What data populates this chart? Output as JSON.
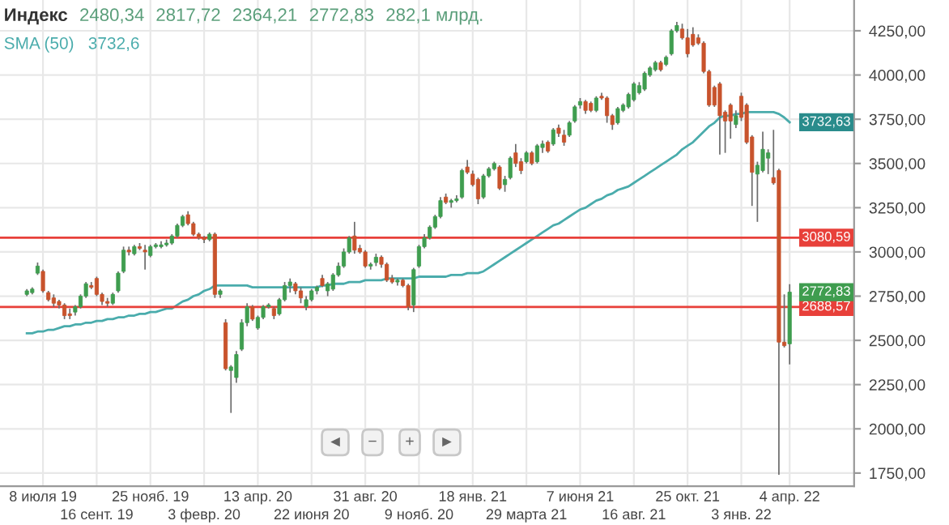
{
  "chart_data": {
    "type": "candlestick",
    "title": "Индекс",
    "categories": [
      null,
      null,
      null,
      "8 июля 19",
      null,
      null,
      null,
      null,
      null,
      null,
      null,
      null,
      null,
      "16 сент. 19",
      null,
      null,
      null,
      null,
      null,
      null,
      null,
      null,
      null,
      "25 нояб. 19",
      null,
      null,
      null,
      null,
      null,
      null,
      null,
      null,
      null,
      "3 февр. 20",
      null,
      null,
      null,
      null,
      null,
      null,
      null,
      null,
      null,
      "13 апр. 20",
      null,
      null,
      null,
      null,
      null,
      null,
      null,
      null,
      null,
      "22 июня 20",
      null,
      null,
      null,
      null,
      null,
      null,
      null,
      null,
      null,
      "31 авг. 20",
      null,
      null,
      null,
      null,
      null,
      null,
      null,
      null,
      null,
      "9 нояб. 20",
      null,
      null,
      null,
      null,
      null,
      null,
      null,
      null,
      null,
      "18 янв. 21",
      null,
      null,
      null,
      null,
      null,
      null,
      null,
      null,
      null,
      "29 марта 21",
      null,
      null,
      null,
      null,
      null,
      null,
      null,
      null,
      null,
      "7 июня 21",
      null,
      null,
      null,
      null,
      null,
      null,
      null,
      null,
      null,
      "16 авг. 21",
      null,
      null,
      null,
      null,
      null,
      null,
      null,
      null,
      null,
      "25 окт. 21",
      null,
      null,
      null,
      null,
      null,
      null,
      null,
      null,
      null,
      "3 янв. 22",
      null,
      null,
      null,
      null,
      null,
      null,
      null,
      null,
      "4 апр. 22"
    ],
    "ohlc": [
      [
        2760,
        2790,
        2750,
        2780
      ],
      [
        2770,
        2800,
        2760,
        2790
      ],
      [
        2880,
        2940,
        2870,
        2920
      ],
      [
        2890,
        2900,
        2770,
        2780
      ],
      [
        2770,
        2780,
        2720,
        2730
      ],
      [
        2740,
        2760,
        2690,
        2710
      ],
      [
        2720,
        2730,
        2680,
        2700
      ],
      [
        2700,
        2710,
        2620,
        2640
      ],
      [
        2650,
        2680,
        2620,
        2640
      ],
      [
        2660,
        2700,
        2640,
        2690
      ],
      [
        2690,
        2760,
        2680,
        2750
      ],
      [
        2750,
        2830,
        2740,
        2820
      ],
      [
        2810,
        2830,
        2790,
        2800
      ],
      [
        2850,
        2860,
        2750,
        2760
      ],
      [
        2760,
        2770,
        2700,
        2720
      ],
      [
        2720,
        2740,
        2690,
        2710
      ],
      [
        2710,
        2770,
        2700,
        2760
      ],
      [
        2780,
        2890,
        2770,
        2880
      ],
      [
        2890,
        3030,
        2880,
        3010
      ],
      [
        3010,
        3030,
        2980,
        3000
      ],
      [
        2990,
        3040,
        2980,
        3030
      ],
      [
        3030,
        3050,
        3010,
        3020
      ],
      [
        3010,
        3040,
        2900,
        3000
      ],
      [
        2980,
        3040,
        2970,
        3030
      ],
      [
        3030,
        3050,
        3020,
        3040
      ],
      [
        3030,
        3060,
        3020,
        3040
      ],
      [
        3040,
        3070,
        3030,
        3050
      ],
      [
        3050,
        3100,
        3040,
        3090
      ],
      [
        3090,
        3160,
        3080,
        3150
      ],
      [
        3150,
        3210,
        3140,
        3200
      ],
      [
        3210,
        3230,
        3150,
        3160
      ],
      [
        3160,
        3170,
        3090,
        3100
      ],
      [
        3100,
        3110,
        3070,
        3080
      ],
      [
        3080,
        3090,
        3050,
        3070
      ],
      [
        3070,
        3110,
        3060,
        3100
      ],
      [
        3100,
        3110,
        2740,
        2760
      ],
      [
        2760,
        2790,
        2740,
        2780
      ],
      [
        2600,
        2620,
        2330,
        2340
      ],
      [
        2330,
        2360,
        2090,
        2350
      ],
      [
        2290,
        2440,
        2260,
        2420
      ],
      [
        2450,
        2620,
        2440,
        2600
      ],
      [
        2600,
        2710,
        2580,
        2690
      ],
      [
        2690,
        2700,
        2610,
        2620
      ],
      [
        2570,
        2640,
        2560,
        2630
      ],
      [
        2630,
        2700,
        2620,
        2690
      ],
      [
        2690,
        2710,
        2680,
        2700
      ],
      [
        2680,
        2690,
        2620,
        2640
      ],
      [
        2650,
        2740,
        2640,
        2730
      ],
      [
        2730,
        2830,
        2720,
        2810
      ],
      [
        2810,
        2850,
        2770,
        2830
      ],
      [
        2820,
        2830,
        2760,
        2780
      ],
      [
        2780,
        2800,
        2710,
        2740
      ],
      [
        2690,
        2750,
        2670,
        2730
      ],
      [
        2730,
        2790,
        2720,
        2780
      ],
      [
        2780,
        2810,
        2760,
        2800
      ],
      [
        2850,
        2870,
        2800,
        2810
      ],
      [
        2780,
        2830,
        2750,
        2820
      ],
      [
        2790,
        2880,
        2780,
        2870
      ],
      [
        2870,
        2940,
        2860,
        2920
      ],
      [
        2920,
        3020,
        2910,
        3000
      ],
      [
        3000,
        3090,
        2990,
        3080
      ],
      [
        3090,
        3170,
        2990,
        3010
      ],
      [
        3020,
        3040,
        2990,
        3000
      ],
      [
        3000,
        3010,
        2910,
        2920
      ],
      [
        2920,
        2940,
        2900,
        2930
      ],
      [
        2940,
        2990,
        2920,
        2970
      ],
      [
        2970,
        2980,
        2910,
        2930
      ],
      [
        2930,
        2940,
        2830,
        2840
      ],
      [
        2850,
        2870,
        2820,
        2830
      ],
      [
        2830,
        2850,
        2810,
        2840
      ],
      [
        2840,
        2850,
        2800,
        2810
      ],
      [
        2810,
        2820,
        2670,
        2690
      ],
      [
        2700,
        2910,
        2660,
        2900
      ],
      [
        2920,
        3040,
        2910,
        3030
      ],
      [
        3030,
        3100,
        3020,
        3080
      ],
      [
        3080,
        3150,
        3070,
        3140
      ],
      [
        3140,
        3210,
        3130,
        3200
      ],
      [
        3200,
        3310,
        3190,
        3290
      ],
      [
        3310,
        3330,
        3270,
        3280
      ],
      [
        3280,
        3300,
        3250,
        3290
      ],
      [
        3290,
        3320,
        3280,
        3300
      ],
      [
        3310,
        3470,
        3300,
        3460
      ],
      [
        3480,
        3520,
        3440,
        3450
      ],
      [
        3440,
        3460,
        3370,
        3380
      ],
      [
        3410,
        3420,
        3270,
        3300
      ],
      [
        3310,
        3440,
        3300,
        3430
      ],
      [
        3430,
        3480,
        3420,
        3470
      ],
      [
        3470,
        3510,
        3460,
        3500
      ],
      [
        3480,
        3490,
        3350,
        3360
      ],
      [
        3380,
        3430,
        3340,
        3410
      ],
      [
        3420,
        3540,
        3410,
        3530
      ],
      [
        3560,
        3610,
        3480,
        3500
      ],
      [
        3510,
        3530,
        3440,
        3460
      ],
      [
        3510,
        3570,
        3500,
        3560
      ],
      [
        3560,
        3570,
        3490,
        3500
      ],
      [
        3510,
        3610,
        3500,
        3600
      ],
      [
        3590,
        3630,
        3560,
        3610
      ],
      [
        3620,
        3630,
        3560,
        3570
      ],
      [
        3610,
        3700,
        3600,
        3690
      ],
      [
        3700,
        3720,
        3650,
        3670
      ],
      [
        3660,
        3690,
        3600,
        3620
      ],
      [
        3660,
        3740,
        3650,
        3730
      ],
      [
        3740,
        3830,
        3730,
        3820
      ],
      [
        3830,
        3870,
        3810,
        3850
      ],
      [
        3850,
        3860,
        3780,
        3800
      ],
      [
        3840,
        3850,
        3790,
        3800
      ],
      [
        3800,
        3880,
        3790,
        3870
      ],
      [
        3880,
        3900,
        3860,
        3870
      ],
      [
        3870,
        3880,
        3730,
        3770
      ],
      [
        3770,
        3780,
        3690,
        3720
      ],
      [
        3730,
        3820,
        3720,
        3810
      ],
      [
        3800,
        3840,
        3790,
        3830
      ],
      [
        3820,
        3900,
        3810,
        3890
      ],
      [
        3860,
        3960,
        3850,
        3950
      ],
      [
        3900,
        3960,
        3890,
        3940
      ],
      [
        3920,
        4020,
        3910,
        4010
      ],
      [
        4000,
        4050,
        3990,
        4040
      ],
      [
        4030,
        4080,
        4020,
        4070
      ],
      [
        4070,
        4080,
        4020,
        4030
      ],
      [
        4060,
        4110,
        4050,
        4100
      ],
      [
        4120,
        4260,
        4110,
        4250
      ],
      [
        4250,
        4300,
        4240,
        4280
      ],
      [
        4260,
        4290,
        4200,
        4210
      ],
      [
        4210,
        4260,
        4100,
        4120
      ],
      [
        4230,
        4270,
        4160,
        4170
      ],
      [
        4210,
        4230,
        4170,
        4180
      ],
      [
        4180,
        4190,
        4010,
        4020
      ],
      [
        4020,
        4030,
        3820,
        3830
      ],
      [
        3930,
        3940,
        3820,
        3830
      ],
      [
        3950,
        3960,
        3550,
        3770
      ],
      [
        3790,
        3800,
        3560,
        3740
      ],
      [
        3830,
        3840,
        3640,
        3740
      ],
      [
        3720,
        3800,
        3700,
        3770
      ],
      [
        3880,
        3900,
        3740,
        3760
      ],
      [
        3830,
        3840,
        3610,
        3620
      ],
      [
        3650,
        3660,
        3260,
        3450
      ],
      [
        3440,
        3510,
        3170,
        3490
      ],
      [
        3460,
        3680,
        3450,
        3580
      ],
      [
        3530,
        3580,
        3440,
        3560
      ],
      [
        3420,
        3690,
        3380,
        3390
      ],
      [
        3460,
        3470,
        1740,
        2490
      ],
      [
        2490,
        2760,
        2460,
        2470
      ],
      [
        2480.34,
        2817.72,
        2364.21,
        2772.83
      ]
    ],
    "series": [
      {
        "name": "SMA (50)",
        "type": "line",
        "color": "#4aacac",
        "values": [
          2540,
          2540,
          2550,
          2550,
          2560,
          2560,
          2570,
          2580,
          2580,
          2590,
          2590,
          2600,
          2600,
          2610,
          2610,
          2620,
          2620,
          2630,
          2630,
          2640,
          2640,
          2650,
          2650,
          2660,
          2660,
          2670,
          2680,
          2680,
          2700,
          2720,
          2730,
          2750,
          2760,
          2780,
          2790,
          2810,
          2810,
          2810,
          2810,
          2810,
          2810,
          2810,
          2800,
          2800,
          2800,
          2800,
          2800,
          2800,
          2800,
          2800,
          2800,
          2800,
          2800,
          2800,
          2800,
          2810,
          2810,
          2820,
          2820,
          2820,
          2830,
          2830,
          2830,
          2840,
          2840,
          2840,
          2840,
          2850,
          2850,
          2850,
          2850,
          2850,
          2850,
          2860,
          2860,
          2860,
          2860,
          2860,
          2860,
          2870,
          2870,
          2870,
          2880,
          2880,
          2880,
          2890,
          2910,
          2930,
          2950,
          2970,
          2990,
          3010,
          3030,
          3050,
          3070,
          3090,
          3110,
          3130,
          3150,
          3160,
          3180,
          3200,
          3220,
          3240,
          3250,
          3270,
          3290,
          3300,
          3320,
          3330,
          3350,
          3360,
          3370,
          3390,
          3410,
          3430,
          3450,
          3470,
          3490,
          3510,
          3530,
          3550,
          3580,
          3600,
          3620,
          3650,
          3680,
          3710,
          3730,
          3760,
          3770,
          3770,
          3780,
          3780,
          3790,
          3790,
          3790,
          3790,
          3790,
          3790,
          3780,
          3760,
          3732.63
        ]
      }
    ],
    "ylim": [
      1676,
      4424
    ],
    "yticks": [
      {
        "value": 1750,
        "label": "1750,00"
      },
      {
        "value": 2000,
        "label": "2000,00"
      },
      {
        "value": 2250,
        "label": "2250,00"
      },
      {
        "value": 2500,
        "label": "2500,00"
      },
      {
        "value": 2750,
        "label": "2750,00"
      },
      {
        "value": 3000,
        "label": "3000,00"
      },
      {
        "value": 3250,
        "label": "3250,00"
      },
      {
        "value": 3500,
        "label": "3500,00"
      },
      {
        "value": 3750,
        "label": "3750,00"
      },
      {
        "value": 4000,
        "label": "4000,00"
      },
      {
        "value": 4250,
        "label": "4250,00"
      }
    ],
    "ref_lines": [
      {
        "axis": "y",
        "value": 3080.59,
        "label": "3080,59",
        "color": "#e8403a"
      },
      {
        "axis": "y",
        "value": 2688.57,
        "label": "2688,57",
        "color": "#e8403a"
      }
    ],
    "annotations": [
      "2480,34",
      "2817,72",
      "2364,21",
      "2772,83",
      "282,1 млрд.",
      "3732,6",
      "3732,63",
      "2772,83",
      "◄",
      "−",
      "+",
      "►"
    ],
    "grid": true
  }
}
